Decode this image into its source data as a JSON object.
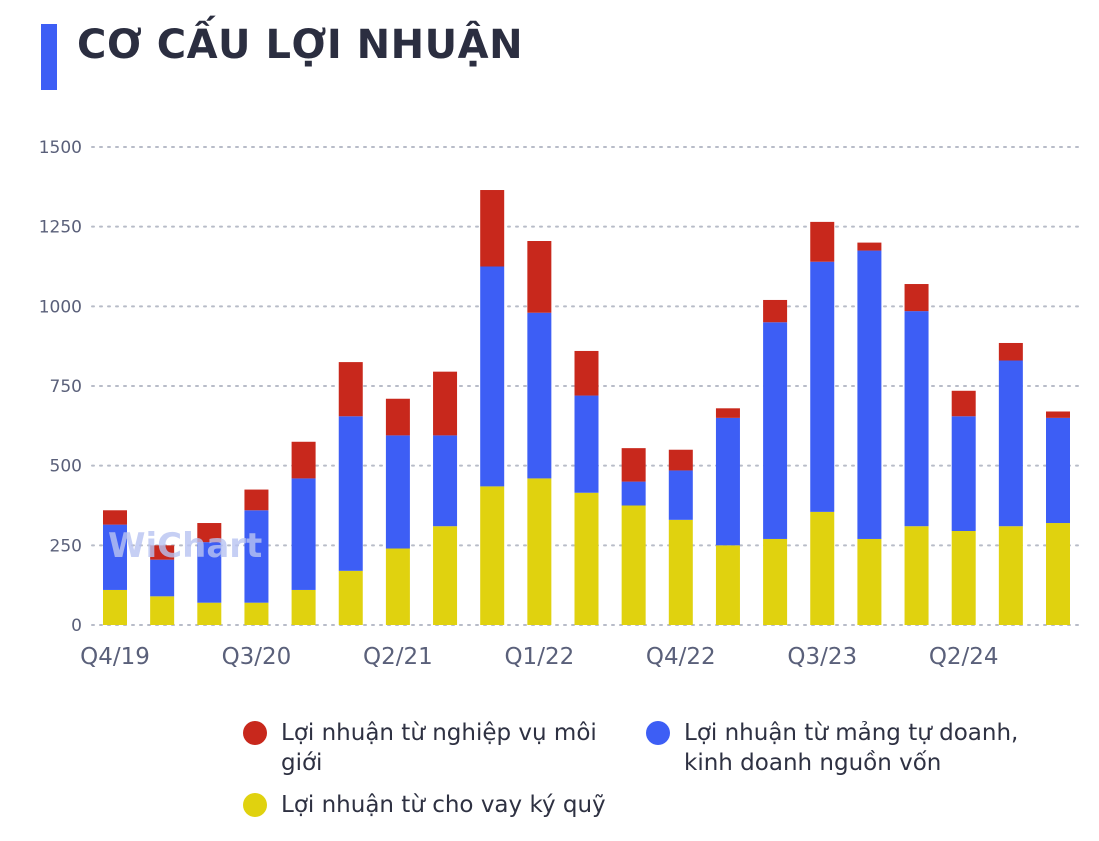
{
  "title": "CƠ CẤU LỢI NHUẬN",
  "watermark": "WiChart",
  "colors": {
    "accent": "#3d5ef5",
    "brokerage": "#c8281c",
    "proprietary": "#3d5ef5",
    "margin": "#e0d20f",
    "grid": "#b8bcc8",
    "axis_text": "#5a607a"
  },
  "legend": {
    "brokerage": "Lợi nhuận từ nghiệp vụ môi giới",
    "proprietary": "Lợi nhuận từ mảng tự doanh, kinh doanh nguồn vốn",
    "margin": "Lợi nhuận từ cho vay ký quỹ"
  },
  "chart_data": {
    "type": "bar",
    "stacked": true,
    "title": "CƠ CẤU LỢI NHUẬN",
    "categories": [
      "Q4/19",
      "Q1/20",
      "Q2/20",
      "Q3/20",
      "Q4/20",
      "Q1/21",
      "Q2/21",
      "Q3/21",
      "Q4/21",
      "Q1/22",
      "Q2/22",
      "Q3/22",
      "Q4/22",
      "Q1/23",
      "Q2/23",
      "Q3/23",
      "Q4/23",
      "Q1/24",
      "Q2/24",
      "Q3/24",
      "Q4/24"
    ],
    "x_tick_labels": [
      "Q4/19",
      "Q3/20",
      "Q2/21",
      "Q1/22",
      "Q4/22",
      "Q3/23",
      "Q2/24"
    ],
    "y_ticks": [
      "0",
      "250",
      "500",
      "750",
      "1000",
      "1250",
      "1500"
    ],
    "ylim": [
      0,
      1500
    ],
    "grid": true,
    "legend_position": "bottom",
    "series": [
      {
        "name": "Lợi nhuận từ cho vay ký quỹ",
        "color": "#e0d20f",
        "values": [
          110,
          90,
          70,
          70,
          110,
          170,
          240,
          310,
          435,
          460,
          415,
          375,
          330,
          250,
          270,
          355,
          270,
          310,
          295,
          310,
          320
        ]
      },
      {
        "name": "Lợi nhuận từ mảng tự doanh, kinh doanh nguồn vốn",
        "color": "#3d5ef5",
        "values": [
          205,
          115,
          190,
          290,
          350,
          485,
          355,
          285,
          690,
          520,
          305,
          75,
          155,
          400,
          680,
          785,
          905,
          675,
          360,
          520,
          330
        ]
      },
      {
        "name": "Lợi nhuận từ nghiệp vụ môi giới",
        "color": "#c8281c",
        "values": [
          45,
          45,
          60,
          65,
          115,
          170,
          115,
          200,
          240,
          225,
          140,
          105,
          65,
          30,
          70,
          125,
          25,
          85,
          80,
          55,
          20
        ]
      }
    ]
  }
}
